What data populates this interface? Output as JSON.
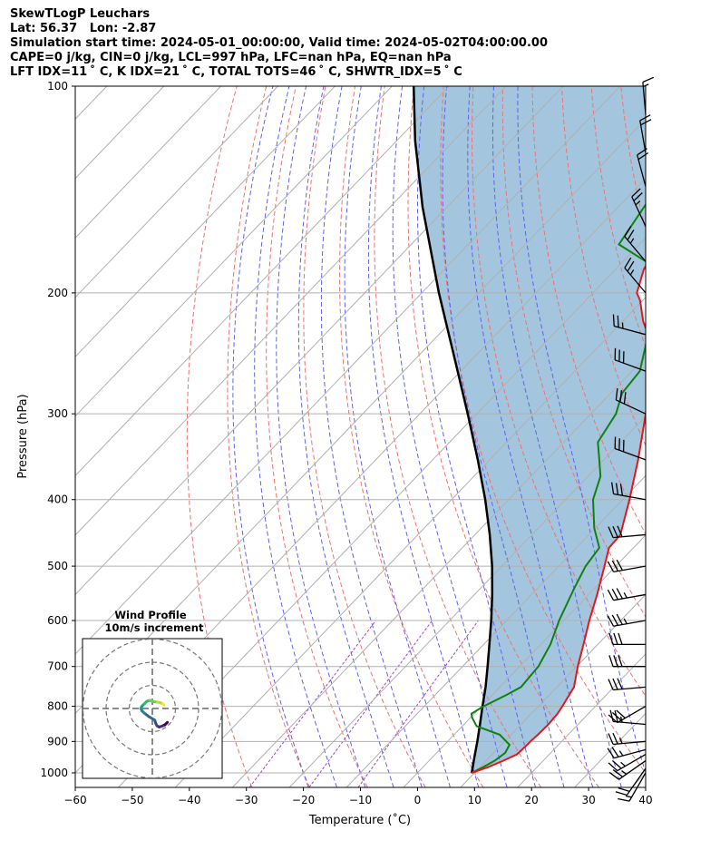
{
  "header": {
    "line1": "SkewTLogP Leuchars",
    "line2": "Lat: 56.37   Lon: -2.87",
    "line3": "Simulation start time: 2024-05-01_00:00:00, Valid time: 2024-05-02T04:00:00.00",
    "line4": "CAPE=0 j/kg, CIN=0 j/kg, LCL=997 hPa, LFC=nan hPa, EQ=nan hPa",
    "line5": "LFT IDX=11 ˚ C, K IDX=21 ˚ C, TOTAL TOTS=46 ˚ C, SHWTR_IDX=5 ˚ C"
  },
  "colors": {
    "temperature": "#e8141a",
    "dewpoint": "#118011",
    "parcel": "#000000",
    "shading": "#a3c6de",
    "dry_adiabat": "#f07070",
    "moist_adiabat": "#6161ee",
    "mixing_ratio": "#a040d0",
    "isotherm": "#b0b0b0",
    "grid": "#b0b0b0"
  },
  "chart_data": {
    "type": "skewt",
    "xlabel": "Temperature (˚C)",
    "ylabel": "Pressure (hPa)",
    "xlim": [
      -60,
      40
    ],
    "ylim": [
      1050,
      100
    ],
    "x_ticks": [
      "−60",
      "−50",
      "−40",
      "−30",
      "−20",
      "−10",
      "0",
      "10",
      "20",
      "30",
      "40"
    ],
    "y_ticks": [
      "1000",
      "900",
      "800",
      "700",
      "600",
      "500",
      "400",
      "300",
      "200",
      "100"
    ],
    "y_tick_values": [
      1000,
      900,
      800,
      700,
      600,
      500,
      400,
      300,
      200,
      100
    ],
    "grid": true,
    "temperature_profile": [
      [
        1000,
        9.5
      ],
      [
        980,
        11.5
      ],
      [
        960,
        13.0
      ],
      [
        940,
        14.3
      ],
      [
        915,
        14.5
      ],
      [
        900,
        14.5
      ],
      [
        880,
        14.7
      ],
      [
        850,
        14.8
      ],
      [
        820,
        14.6
      ],
      [
        800,
        14.2
      ],
      [
        750,
        13.0
      ],
      [
        700,
        10.2
      ],
      [
        650,
        7.5
      ],
      [
        600,
        4.5
      ],
      [
        550,
        1.5
      ],
      [
        500,
        -2.0
      ],
      [
        470,
        -4.3
      ],
      [
        450,
        -4.5
      ],
      [
        400,
        -8.8
      ],
      [
        350,
        -14.0
      ],
      [
        300,
        -20.4
      ],
      [
        260,
        -26.2
      ],
      [
        240,
        -30.0
      ],
      [
        230,
        -33.3
      ],
      [
        220,
        -36.4
      ],
      [
        205,
        -40.5
      ],
      [
        200,
        -42.3
      ],
      [
        185,
        -45.0
      ],
      [
        160,
        -48.0
      ],
      [
        140,
        -51.6
      ],
      [
        120,
        -55.3
      ],
      [
        110,
        -57.0
      ],
      [
        100,
        -58.6
      ]
    ],
    "dewpoint_profile": [
      [
        1000,
        9.5
      ],
      [
        980,
        10.6
      ],
      [
        960,
        11.5
      ],
      [
        935,
        12.0
      ],
      [
        910,
        11.4
      ],
      [
        880,
        8.0
      ],
      [
        855,
        2.5
      ],
      [
        830,
        0.2
      ],
      [
        820,
        -0.5
      ],
      [
        800,
        0.4
      ],
      [
        770,
        2.5
      ],
      [
        750,
        3.7
      ],
      [
        700,
        3.3
      ],
      [
        650,
        1.7
      ],
      [
        600,
        -0.8
      ],
      [
        540,
        -3.5
      ],
      [
        500,
        -5.3
      ],
      [
        470,
        -6.0
      ],
      [
        440,
        -10.2
      ],
      [
        400,
        -15.2
      ],
      [
        370,
        -17.8
      ],
      [
        350,
        -20.8
      ],
      [
        330,
        -24.0
      ],
      [
        300,
        -25.6
      ],
      [
        280,
        -28.0
      ],
      [
        260,
        -28.6
      ],
      [
        230,
        -33.3
      ],
      [
        215,
        -35.2
      ],
      [
        200,
        -38.0
      ],
      [
        190,
        -40.8
      ],
      [
        180,
        -46.0
      ],
      [
        170,
        -53.6
      ],
      [
        140,
        -56.5
      ],
      [
        110,
        -59.7
      ],
      [
        100,
        -61.5
      ]
    ],
    "parcel_profile": [
      [
        1000,
        9.5
      ],
      [
        950,
        7.4
      ],
      [
        900,
        5.2
      ],
      [
        850,
        2.8
      ],
      [
        800,
        0.2
      ],
      [
        750,
        -2.5
      ],
      [
        700,
        -5.6
      ],
      [
        650,
        -9.0
      ],
      [
        600,
        -12.7
      ],
      [
        550,
        -16.9
      ],
      [
        500,
        -21.7
      ],
      [
        450,
        -27.4
      ],
      [
        400,
        -34.1
      ],
      [
        350,
        -42.1
      ],
      [
        300,
        -51.6
      ],
      [
        250,
        -63.0
      ],
      [
        200,
        -77.0
      ],
      [
        150,
        -94.3
      ],
      [
        120,
        -106.8
      ],
      [
        100,
        -116.2
      ]
    ],
    "wind_barbs": [
      {
        "p": 1000,
        "speed_kt": 15,
        "dir_deg": 210
      },
      {
        "p": 985,
        "speed_kt": 20,
        "dir_deg": 215
      },
      {
        "p": 960,
        "speed_kt": 25,
        "dir_deg": 235
      },
      {
        "p": 940,
        "speed_kt": 25,
        "dir_deg": 240
      },
      {
        "p": 925,
        "speed_kt": 25,
        "dir_deg": 255
      },
      {
        "p": 900,
        "speed_kt": 25,
        "dir_deg": 265
      },
      {
        "p": 850,
        "speed_kt": 25,
        "dir_deg": 275
      },
      {
        "p": 800,
        "speed_kt": 30,
        "dir_deg": 240
      },
      {
        "p": 750,
        "speed_kt": 30,
        "dir_deg": 265
      },
      {
        "p": 700,
        "speed_kt": 30,
        "dir_deg": 270
      },
      {
        "p": 650,
        "speed_kt": 30,
        "dir_deg": 270
      },
      {
        "p": 600,
        "speed_kt": 35,
        "dir_deg": 260
      },
      {
        "p": 550,
        "speed_kt": 35,
        "dir_deg": 260
      },
      {
        "p": 500,
        "speed_kt": 30,
        "dir_deg": 260
      },
      {
        "p": 450,
        "speed_kt": 30,
        "dir_deg": 265
      },
      {
        "p": 400,
        "speed_kt": 30,
        "dir_deg": 280
      },
      {
        "p": 350,
        "speed_kt": 30,
        "dir_deg": 290
      },
      {
        "p": 300,
        "speed_kt": 30,
        "dir_deg": 295
      },
      {
        "p": 260,
        "speed_kt": 30,
        "dir_deg": 290
      },
      {
        "p": 230,
        "speed_kt": 25,
        "dir_deg": 285
      },
      {
        "p": 200,
        "speed_kt": 25,
        "dir_deg": 320
      },
      {
        "p": 180,
        "speed_kt": 25,
        "dir_deg": 320
      },
      {
        "p": 160,
        "speed_kt": 25,
        "dir_deg": 335
      },
      {
        "p": 140,
        "speed_kt": 20,
        "dir_deg": 345
      },
      {
        "p": 125,
        "speed_kt": 20,
        "dir_deg": 350
      },
      {
        "p": 110,
        "speed_kt": 15,
        "dir_deg": 355
      }
    ],
    "inset": {
      "type": "hodograph",
      "title_line1": "Wind Profile",
      "title_line2": "10m/s increment",
      "ring_increment_ms": 10,
      "rings": [
        10,
        20,
        30
      ],
      "hodograph_uv": [
        [
          6.5,
          -6.0
        ],
        [
          5.5,
          -7.0
        ],
        [
          4.5,
          -7.5
        ],
        [
          3.0,
          -8.0
        ],
        [
          2.0,
          -7.5
        ],
        [
          1.5,
          -6.5
        ],
        [
          1.0,
          -5.0
        ],
        [
          -1.5,
          -3.5
        ],
        [
          -3.5,
          -2.0
        ],
        [
          -4.5,
          -1.0
        ],
        [
          -5.0,
          0.0
        ],
        [
          -4.5,
          1.0
        ],
        [
          -3.5,
          2.0
        ],
        [
          -2.5,
          3.0
        ],
        [
          -1.0,
          3.5
        ],
        [
          0.5,
          3.0
        ],
        [
          2.0,
          2.8
        ],
        [
          3.5,
          2.5
        ],
        [
          4.5,
          2.0
        ],
        [
          5.0,
          1.5
        ]
      ]
    }
  }
}
